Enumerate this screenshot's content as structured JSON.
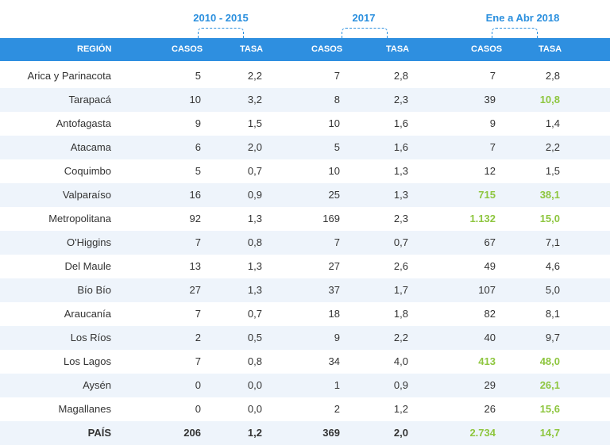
{
  "periods": [
    "2010 - 2015",
    "2017",
    "Ene a Abr 2018"
  ],
  "headers": {
    "region": "REGIÓN",
    "casos": "CASOS",
    "tasa": "TASA"
  },
  "highlight_color": "#8ec63f",
  "header_bg": "#2e8fe0",
  "rows": [
    {
      "region": "Arica y Parinacota",
      "v": [
        "5",
        "2,2",
        "7",
        "2,8",
        "7",
        "2,8"
      ],
      "hl": []
    },
    {
      "region": "Tarapacá",
      "v": [
        "10",
        "3,2",
        "8",
        "2,3",
        "39",
        "10,8"
      ],
      "hl": [
        5
      ]
    },
    {
      "region": "Antofagasta",
      "v": [
        "9",
        "1,5",
        "10",
        "1,6",
        "9",
        "1,4"
      ],
      "hl": []
    },
    {
      "region": "Atacama",
      "v": [
        "6",
        "2,0",
        "5",
        "1,6",
        "7",
        "2,2"
      ],
      "hl": []
    },
    {
      "region": "Coquimbo",
      "v": [
        "5",
        "0,7",
        "10",
        "1,3",
        "12",
        "1,5"
      ],
      "hl": []
    },
    {
      "region": "Valparaíso",
      "v": [
        "16",
        "0,9",
        "25",
        "1,3",
        "715",
        "38,1"
      ],
      "hl": [
        4,
        5
      ]
    },
    {
      "region": "Metropolitana",
      "v": [
        "92",
        "1,3",
        "169",
        "2,3",
        "1.132",
        "15,0"
      ],
      "hl": [
        4,
        5
      ]
    },
    {
      "region": "O'Higgins",
      "v": [
        "7",
        "0,8",
        "7",
        "0,7",
        "67",
        "7,1"
      ],
      "hl": []
    },
    {
      "region": "Del Maule",
      "v": [
        "13",
        "1,3",
        "27",
        "2,6",
        "49",
        "4,6"
      ],
      "hl": []
    },
    {
      "region": "Bío Bío",
      "v": [
        "27",
        "1,3",
        "37",
        "1,7",
        "107",
        "5,0"
      ],
      "hl": []
    },
    {
      "region": "Araucanía",
      "v": [
        "7",
        "0,7",
        "18",
        "1,8",
        "82",
        "8,1"
      ],
      "hl": []
    },
    {
      "region": "Los Ríos",
      "v": [
        "2",
        "0,5",
        "9",
        "2,2",
        "40",
        "9,7"
      ],
      "hl": []
    },
    {
      "region": "Los Lagos",
      "v": [
        "7",
        "0,8",
        "34",
        "4,0",
        "413",
        "48,0"
      ],
      "hl": [
        4,
        5
      ]
    },
    {
      "region": "Aysén",
      "v": [
        "0",
        "0,0",
        "1",
        "0,9",
        "29",
        "26,1"
      ],
      "hl": [
        5
      ]
    },
    {
      "region": "Magallanes",
      "v": [
        "0",
        "0,0",
        "2",
        "1,2",
        "26",
        "15,6"
      ],
      "hl": [
        5
      ]
    },
    {
      "region": "PAÍS",
      "v": [
        "206",
        "1,2",
        "369",
        "2,0",
        "2.734",
        "14,7"
      ],
      "hl": [
        4,
        5
      ],
      "total": true
    }
  ]
}
